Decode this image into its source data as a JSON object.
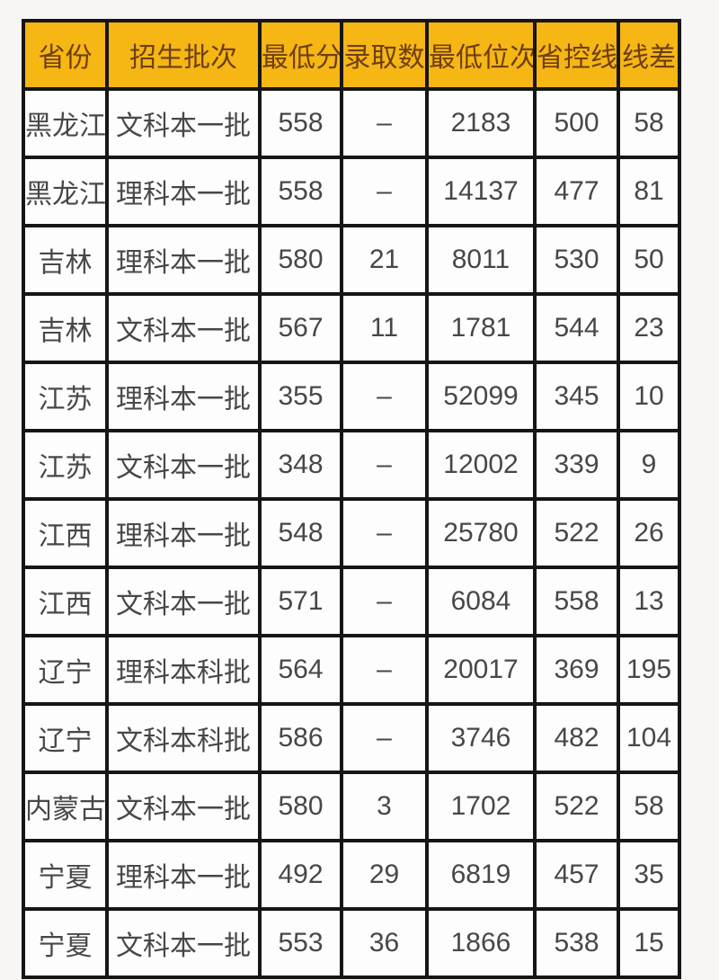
{
  "chart_data": {
    "type": "table",
    "title": "",
    "columns": [
      {
        "key": "province",
        "label": "省份"
      },
      {
        "key": "batch",
        "label": "招生批次"
      },
      {
        "key": "min_score",
        "label": "最低分"
      },
      {
        "key": "admit_count",
        "label": "录取数"
      },
      {
        "key": "min_rank",
        "label": "最低位次"
      },
      {
        "key": "control_line",
        "label": "省控线"
      },
      {
        "key": "line_diff",
        "label": "线差"
      }
    ],
    "rows": [
      [
        "黑龙江",
        "文科本一批",
        "558",
        "–",
        "2183",
        "500",
        "58"
      ],
      [
        "黑龙江",
        "理科本一批",
        "558",
        "–",
        "14137",
        "477",
        "81"
      ],
      [
        "吉林",
        "理科本一批",
        "580",
        "21",
        "8011",
        "530",
        "50"
      ],
      [
        "吉林",
        "文科本一批",
        "567",
        "11",
        "1781",
        "544",
        "23"
      ],
      [
        "江苏",
        "理科本一批",
        "355",
        "–",
        "52099",
        "345",
        "10"
      ],
      [
        "江苏",
        "文科本一批",
        "348",
        "–",
        "12002",
        "339",
        "9"
      ],
      [
        "江西",
        "理科本一批",
        "548",
        "–",
        "25780",
        "522",
        "26"
      ],
      [
        "江西",
        "文科本一批",
        "571",
        "–",
        "6084",
        "558",
        "13"
      ],
      [
        "辽宁",
        "理科本科批",
        "564",
        "–",
        "20017",
        "369",
        "195"
      ],
      [
        "辽宁",
        "文科本科批",
        "586",
        "–",
        "3746",
        "482",
        "104"
      ],
      [
        "内蒙古",
        "文科本一批",
        "580",
        "3",
        "1702",
        "522",
        "58"
      ],
      [
        "宁夏",
        "理科本一批",
        "492",
        "29",
        "6819",
        "457",
        "35"
      ],
      [
        "宁夏",
        "文科本一批",
        "553",
        "36",
        "1866",
        "538",
        "15"
      ]
    ]
  },
  "colors": {
    "header_bg": "#f6b614",
    "header_text": "#6e3f10",
    "border": "#161616",
    "cell_bg": "#fdfdfd",
    "cell_text": "#474747",
    "page_bg": "#f7f6f5"
  }
}
